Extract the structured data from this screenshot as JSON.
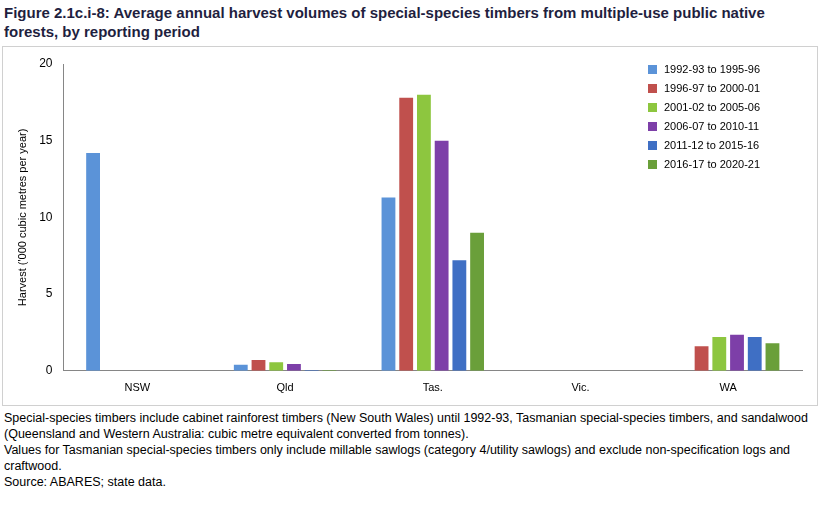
{
  "chart_data": {
    "type": "bar",
    "title": "Figure 2.1c.i-8: Average annual harvest volumes of special-species timbers from multiple-use public native forests, by reporting period",
    "y_label": "Harvest ('000 cubic metres per year)",
    "categories": [
      "NSW",
      "Qld",
      "Tas.",
      "Vic.",
      "WA"
    ],
    "series": [
      {
        "name": "1992-93 to 1995-96",
        "color": "#5b93d8",
        "values": [
          14.2,
          0.4,
          11.3,
          null,
          null
        ]
      },
      {
        "name": "1996-97 to 2000-01",
        "color": "#c0504d",
        "values": [
          null,
          0.7,
          17.8,
          null,
          1.6
        ]
      },
      {
        "name": "2001-02 to 2005-06",
        "color": "#8dc63f",
        "values": [
          null,
          0.55,
          18.0,
          null,
          2.2
        ]
      },
      {
        "name": "2006-07 to 2010-11",
        "color": "#7d3fa8",
        "values": [
          null,
          0.45,
          15.0,
          null,
          2.35
        ]
      },
      {
        "name": "2011-12 to 2015-16",
        "color": "#3f6fc4",
        "values": [
          null,
          0.05,
          7.2,
          null,
          2.2
        ]
      },
      {
        "name": "2016-17 to 2020-21",
        "color": "#6a9f3a",
        "values": [
          null,
          0.05,
          9.0,
          null,
          1.8
        ]
      }
    ],
    "ylim": [
      0,
      20
    ],
    "yticks": [
      0,
      5,
      10,
      15,
      20
    ],
    "grid": false,
    "legend": "top right",
    "notes": [
      "Special-species timbers include cabinet rainforest timbers (New South Wales) until 1992-93, Tasmanian special-species timbers, and sandalwood (Queensland and Western Australia: cubic metre equivalent converted from tonnes).",
      "Values for Tasmanian special-species timbers only include millable sawlogs (category 4/utility sawlogs) and exclude non-specification logs and craftwood.",
      "Source: ABARES; state data."
    ]
  }
}
